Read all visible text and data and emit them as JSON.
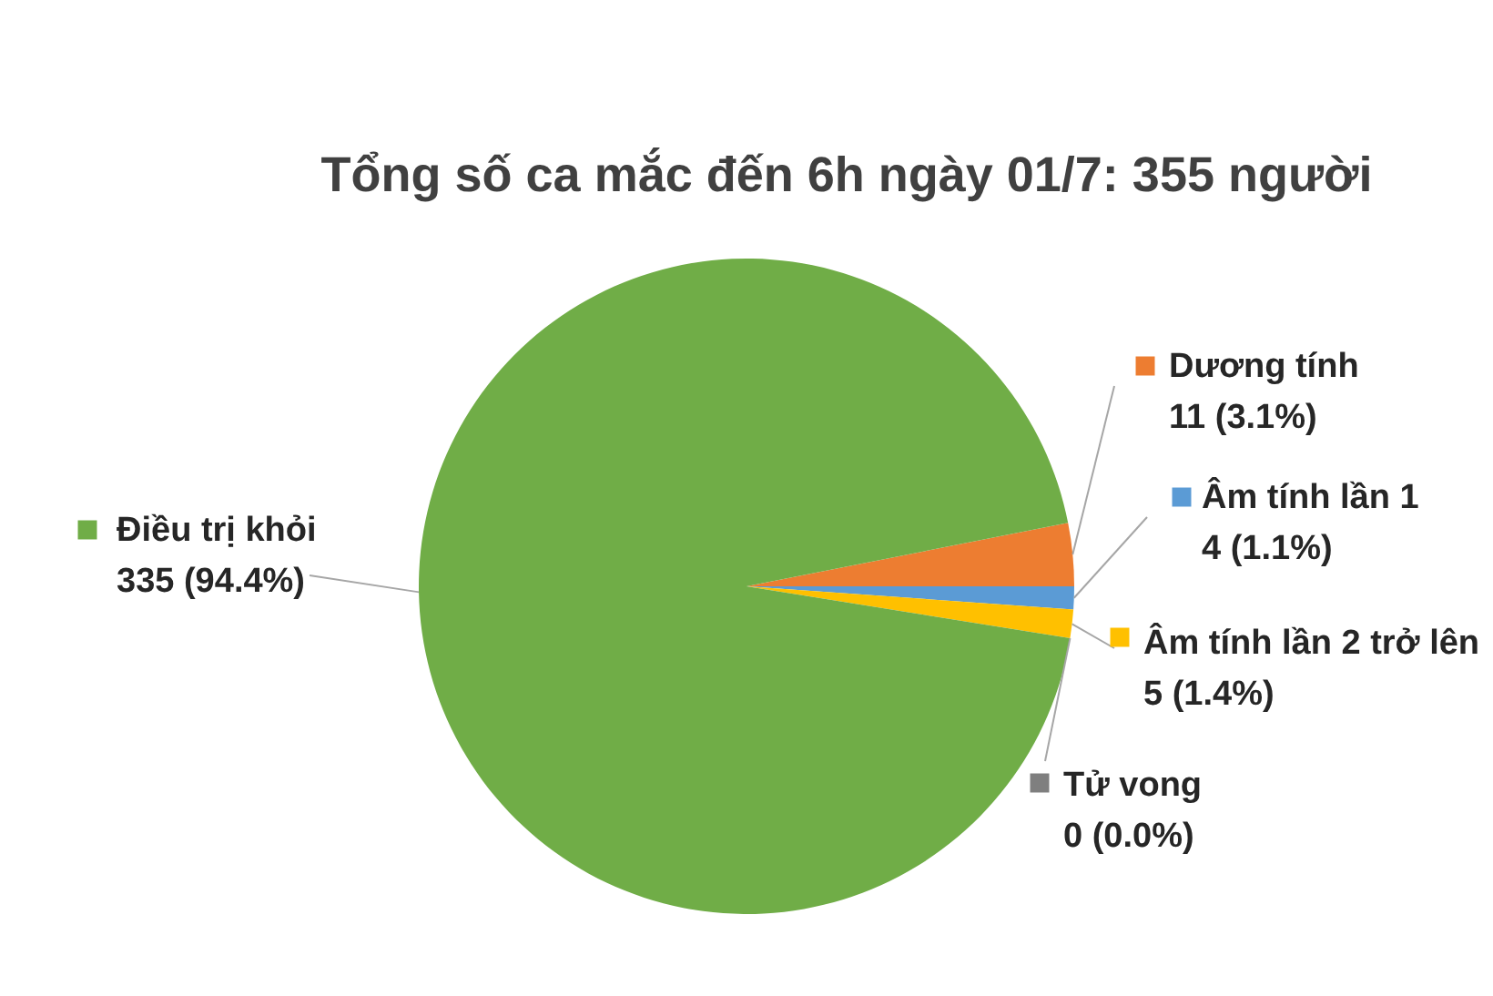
{
  "chart_data": {
    "type": "pie",
    "title": "Tổng số ca mắc đến 6h ngày 01/7: 355 người",
    "categories": [
      "Dương tính",
      "Âm tính lần 1",
      "Âm tính lần 2 trở lên",
      "Tử vong",
      "Điều trị khỏi"
    ],
    "values": [
      11,
      4,
      5,
      0,
      335
    ],
    "colors": [
      "#ed7d31",
      "#5b9bd5",
      "#ffc000",
      "#7f7f7f",
      "#70ad47"
    ],
    "value_labels": [
      "11 (3.1%)",
      "4 (1.1%)",
      "5 (1.4%)",
      "0 (0.0%)",
      "335 (94.4%)"
    ],
    "legend": "right"
  }
}
